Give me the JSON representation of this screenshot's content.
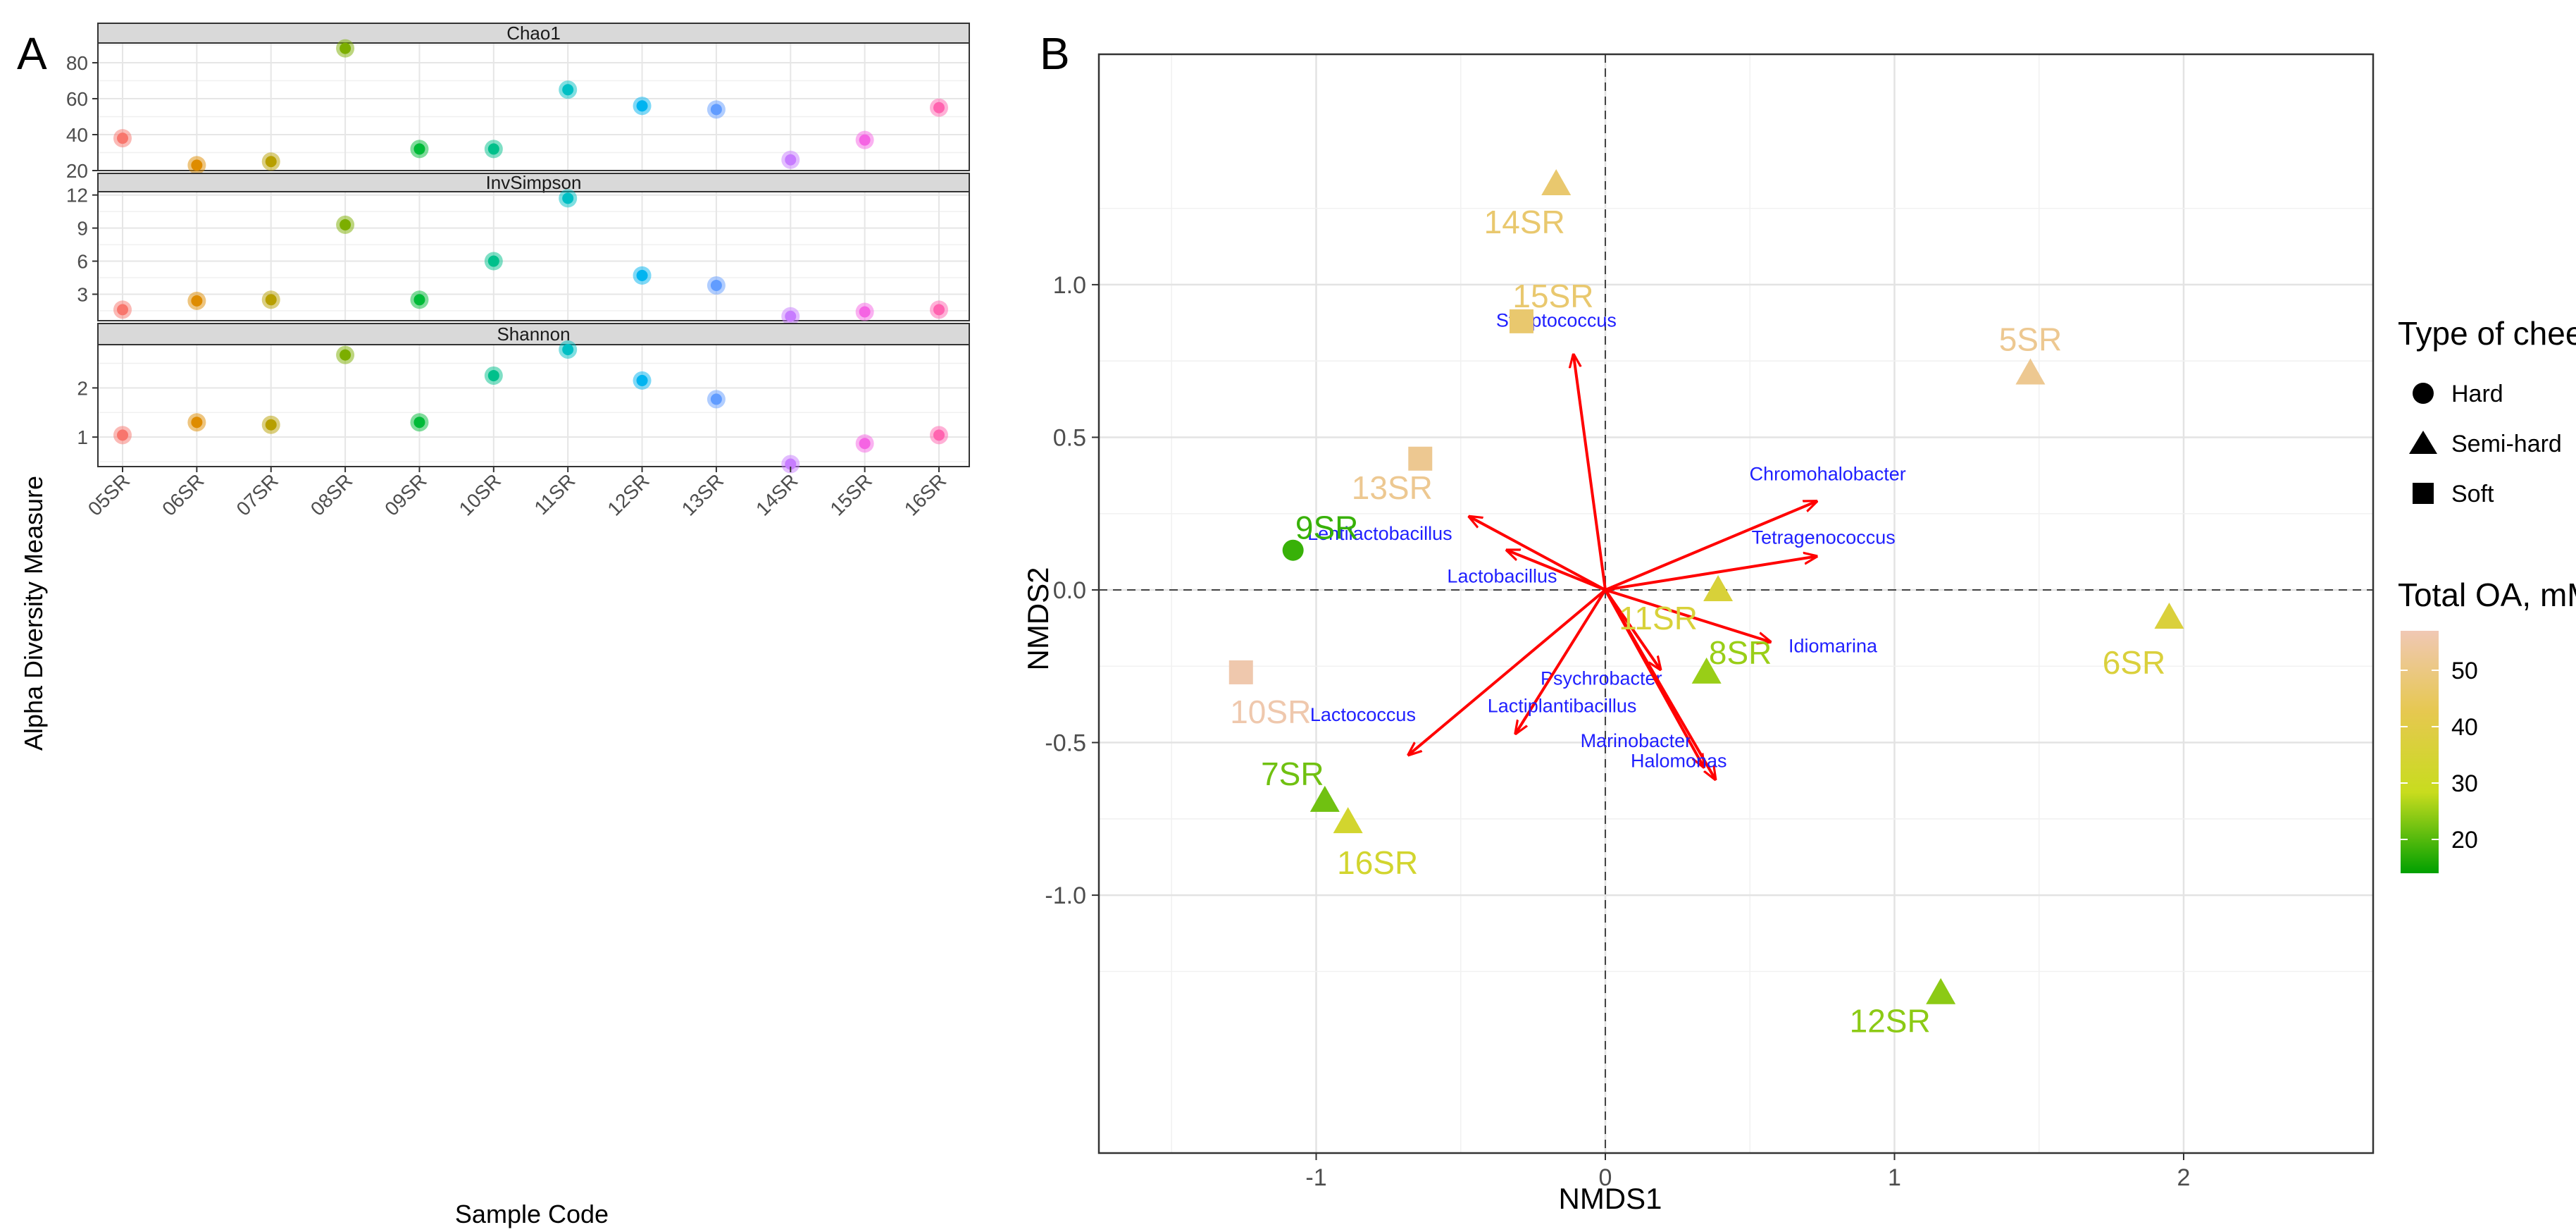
{
  "figure": {
    "panel_a_letter": "A",
    "panel_b_letter": "B"
  },
  "chart_data": [
    {
      "type": "scatter",
      "panel": "A",
      "title": "",
      "xlabel": "Sample Code",
      "ylabel": "Alpha Diversity Measure",
      "categories": [
        "05SR",
        "06SR",
        "07SR",
        "08SR",
        "09SR",
        "10SR",
        "11SR",
        "12SR",
        "13SR",
        "14SR",
        "15SR",
        "16SR"
      ],
      "category_colors": [
        "#f8766d",
        "#de8c00",
        "#b79f00",
        "#7cae00",
        "#00ba38",
        "#00c08b",
        "#00bfc4",
        "#00b4f0",
        "#619cff",
        "#c77cff",
        "#f564e3",
        "#ff64b0"
      ],
      "facets": [
        {
          "name": "Chao1",
          "values": [
            38,
            23,
            25,
            88,
            32,
            32,
            65,
            56,
            54,
            26,
            37,
            55
          ],
          "ylim": [
            20,
            91
          ],
          "ticks": [
            20,
            40,
            60,
            80
          ]
        },
        {
          "name": "InvSimpson",
          "values": [
            1.6,
            2.4,
            2.5,
            9.3,
            2.5,
            6.0,
            11.7,
            4.7,
            3.8,
            1.0,
            1.4,
            1.6
          ],
          "ylim": [
            0.6,
            12.3
          ],
          "ticks": [
            3,
            6,
            9,
            12
          ]
        },
        {
          "name": "Shannon",
          "values": [
            1.04,
            1.3,
            1.25,
            2.67,
            1.3,
            2.25,
            2.78,
            2.15,
            1.77,
            0.45,
            0.87,
            1.04
          ],
          "ylim": [
            0.4,
            2.88
          ],
          "ticks": [
            1,
            2
          ]
        }
      ]
    },
    {
      "type": "scatter",
      "panel": "B",
      "title": "",
      "xlabel": "NMDS1",
      "ylabel": "NMDS2",
      "xlim": [
        -1.45,
        2.05
      ],
      "ylim": [
        -1.45,
        1.45
      ],
      "xticks": [
        -1,
        0,
        1,
        2
      ],
      "yticks": [
        -1.0,
        -0.5,
        0.0,
        0.5,
        1.0
      ],
      "reference_lines": {
        "x": 0,
        "y": 0,
        "style": "dashed"
      },
      "points": [
        {
          "label": "5SR",
          "x": 1.47,
          "y": 0.71,
          "type": "Semi-hard",
          "oa": 52
        },
        {
          "label": "6SR",
          "x": 1.95,
          "y": -0.09,
          "type": "Semi-hard",
          "oa": 37
        },
        {
          "label": "7SR",
          "x": -0.97,
          "y": -0.69,
          "type": "Semi-hard",
          "oa": 22
        },
        {
          "label": "8SR",
          "x": 0.35,
          "y": -0.27,
          "type": "Semi-hard",
          "oa": 25
        },
        {
          "label": "9SR",
          "x": -1.08,
          "y": 0.13,
          "type": "Hard",
          "oa": 18
        },
        {
          "label": "10SR",
          "x": -1.26,
          "y": -0.27,
          "type": "Soft",
          "oa": 56
        },
        {
          "label": "11SR",
          "x": 0.39,
          "y": 0.0,
          "type": "Semi-hard",
          "oa": 36
        },
        {
          "label": "12SR",
          "x": 1.16,
          "y": -1.32,
          "type": "Semi-hard",
          "oa": 24
        },
        {
          "label": "13SR",
          "x": -0.64,
          "y": 0.43,
          "type": "Soft",
          "oa": 52
        },
        {
          "label": "14SR",
          "x": -0.17,
          "y": 1.33,
          "type": "Semi-hard",
          "oa": 47
        },
        {
          "label": "15SR",
          "x": -0.29,
          "y": 0.88,
          "type": "Soft",
          "oa": 47
        },
        {
          "label": "16SR",
          "x": -0.89,
          "y": -0.76,
          "type": "Semi-hard",
          "oa": 33
        }
      ],
      "vectors": [
        {
          "name": "Streptococcus",
          "x": -0.11,
          "y": 0.77
        },
        {
          "name": "Chromohalobacter",
          "x": 0.73,
          "y": 0.29
        },
        {
          "name": "Tetragenococcus",
          "x": 0.73,
          "y": 0.11
        },
        {
          "name": "Lentilactobacillus",
          "x": -0.47,
          "y": 0.24
        },
        {
          "name": "Lactobacillus",
          "x": -0.34,
          "y": 0.13
        },
        {
          "name": "Idiomarina",
          "x": 0.57,
          "y": -0.17
        },
        {
          "name": "Psychrobacter",
          "x": 0.19,
          "y": -0.26
        },
        {
          "name": "Lactiplantibacillus",
          "x": -0.31,
          "y": -0.47
        },
        {
          "name": "Lactococcus",
          "x": -0.68,
          "y": -0.54
        },
        {
          "name": "Marinobacter",
          "x": 0.34,
          "y": -0.58
        },
        {
          "name": "Halomonas",
          "x": 0.38,
          "y": -0.62
        }
      ],
      "legend_shape": {
        "title": "Type of cheese",
        "entries": [
          "Hard",
          "Semi-hard",
          "Soft"
        ]
      },
      "legend_color": {
        "title": "Total OA, mM",
        "range": [
          14,
          57
        ],
        "ticks": [
          20,
          30,
          40,
          50
        ],
        "colors": [
          "#00a000",
          "#c8dc1e",
          "#e6c850",
          "#f0c8b4"
        ]
      }
    }
  ]
}
